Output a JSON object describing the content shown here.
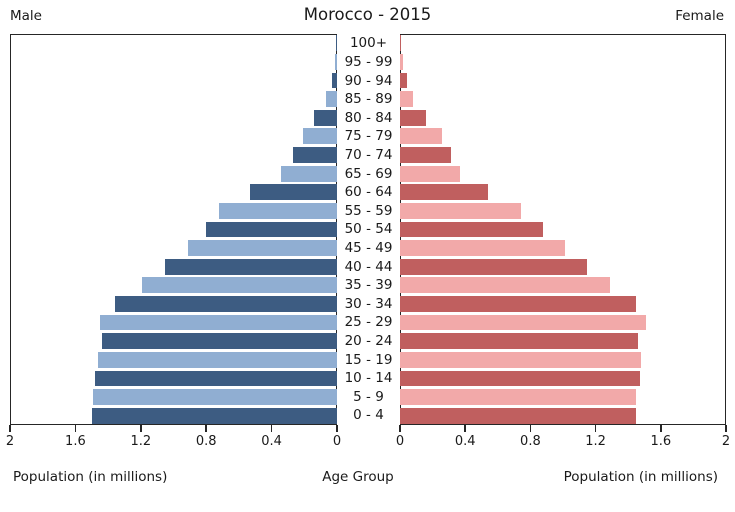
{
  "header": {
    "title": "Morocco - 2015",
    "left_label": "Male",
    "right_label": "Female"
  },
  "footer": {
    "left_axis_label": "Population (in millions)",
    "center_label": "Age Group",
    "right_axis_label": "Population (in millions)"
  },
  "colors": {
    "male_dark": "#3d5c82",
    "male_light": "#90aed2",
    "female_dark": "#c05f5f",
    "female_light": "#f2a9a9",
    "frame": "#262626",
    "text": "#1a1a1a",
    "background": "#ffffff"
  },
  "axis": {
    "left_ticks": [
      "2",
      "1.6",
      "1.2",
      "0.8",
      "0.4",
      "0"
    ],
    "right_ticks": [
      "0",
      "0.4",
      "0.8",
      "1.2",
      "1.6",
      "2"
    ]
  },
  "chart_data": {
    "type": "bar",
    "subtype": "population-pyramid",
    "title": "Morocco - 2015",
    "xlabel": "Population (in millions)",
    "center_axis_label": "Age Group",
    "xlim": [
      0,
      2
    ],
    "grid": false,
    "age_groups_top_to_bottom": [
      "100+",
      "95 - 99",
      "90 - 94",
      "85 - 89",
      "80 - 84",
      "75 - 79",
      "70 - 74",
      "65 - 69",
      "60 - 64",
      "55 - 59",
      "50 - 54",
      "45 - 49",
      "40 - 44",
      "35 - 39",
      "30 - 34",
      "25 - 29",
      "20 - 24",
      "15 - 19",
      "10 - 14",
      "5 - 9",
      "0 - 4"
    ],
    "series": [
      {
        "name": "Male",
        "side": "left",
        "values_top_to_bottom": [
          0.005,
          0.01,
          0.03,
          0.07,
          0.14,
          0.21,
          0.27,
          0.34,
          0.53,
          0.72,
          0.8,
          0.91,
          1.05,
          1.19,
          1.36,
          1.45,
          1.44,
          1.46,
          1.48,
          1.49,
          1.5
        ]
      },
      {
        "name": "Female",
        "side": "right",
        "values_top_to_bottom": [
          0.005,
          0.02,
          0.04,
          0.08,
          0.16,
          0.26,
          0.31,
          0.37,
          0.54,
          0.74,
          0.88,
          1.01,
          1.15,
          1.29,
          1.45,
          1.51,
          1.46,
          1.48,
          1.47,
          1.45,
          1.45
        ]
      }
    ]
  }
}
